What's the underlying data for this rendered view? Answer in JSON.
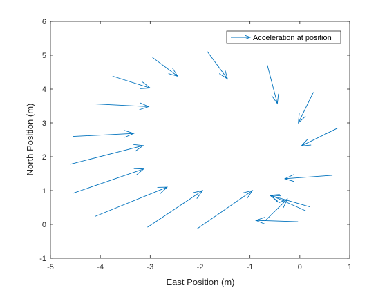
{
  "chart_data": {
    "type": "quiver",
    "xlabel": "East Position (m)",
    "ylabel": "North Position (m)",
    "xlim": [
      -5,
      1
    ],
    "ylim": [
      -1,
      6
    ],
    "xticks": [
      -5,
      -4,
      -3,
      -2,
      -1,
      0,
      1
    ],
    "yticks": [
      -1,
      0,
      1,
      2,
      3,
      4,
      5,
      6
    ],
    "grid": false,
    "legend_position": "top-right",
    "series": [
      {
        "name": "Acceleration at position",
        "color": "#0072BD",
        "arrows": [
          {
            "x": -4.6,
            "y": 1.78,
            "u": 1.46,
            "v": 0.55
          },
          {
            "x": -4.55,
            "y": 0.92,
            "u": 1.42,
            "v": 0.72
          },
          {
            "x": -4.1,
            "y": 0.24,
            "u": 1.44,
            "v": 0.86
          },
          {
            "x": -3.05,
            "y": -0.08,
            "u": 1.1,
            "v": 1.08
          },
          {
            "x": -2.05,
            "y": -0.12,
            "u": 1.1,
            "v": 1.12
          },
          {
            "x": -4.55,
            "y": 2.6,
            "u": 1.22,
            "v": 0.09
          },
          {
            "x": -4.1,
            "y": 3.56,
            "u": 1.07,
            "v": -0.08
          },
          {
            "x": -3.75,
            "y": 4.38,
            "u": 0.75,
            "v": -0.35
          },
          {
            "x": -2.95,
            "y": 4.93,
            "u": 0.5,
            "v": -0.55
          },
          {
            "x": -1.85,
            "y": 5.1,
            "u": 0.4,
            "v": -0.8
          },
          {
            "x": -0.65,
            "y": 4.7,
            "u": 0.2,
            "v": -1.13
          },
          {
            "x": 0.27,
            "y": 3.9,
            "u": -0.3,
            "v": -0.9
          },
          {
            "x": 0.75,
            "y": 2.84,
            "u": -0.72,
            "v": -0.52
          },
          {
            "x": 0.65,
            "y": 1.45,
            "u": -0.95,
            "v": -0.1
          },
          {
            "x": 0.2,
            "y": 0.52,
            "u": -0.8,
            "v": 0.34
          },
          {
            "x": 0.12,
            "y": 0.4,
            "u": -0.7,
            "v": 0.46
          },
          {
            "x": -0.04,
            "y": 0.08,
            "u": -0.84,
            "v": 0.04
          },
          {
            "x": -0.7,
            "y": 0.1,
            "u": 0.45,
            "v": 0.65
          }
        ]
      }
    ]
  }
}
